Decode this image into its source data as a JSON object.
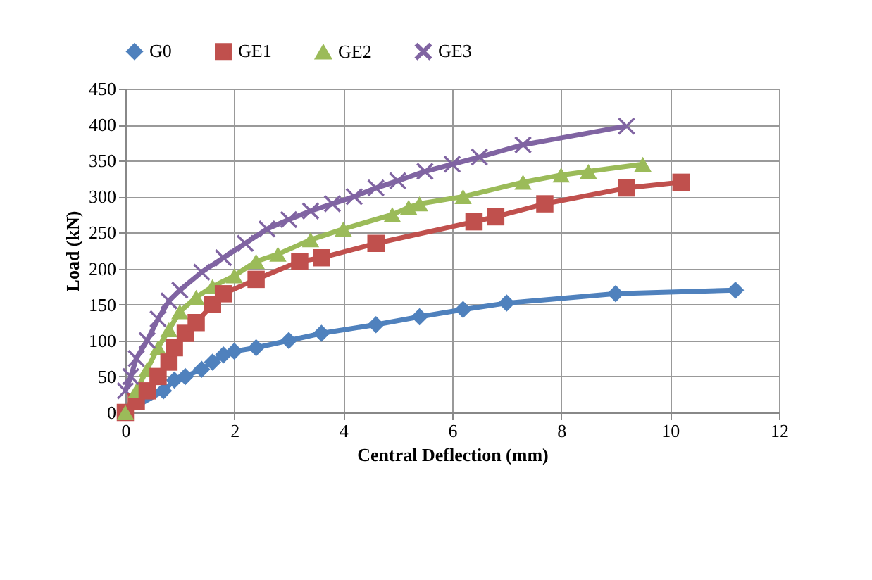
{
  "chart_data": {
    "type": "line",
    "xlabel": "Central Deflection (mm)",
    "ylabel": "Load (kN)",
    "xlim": [
      0,
      12
    ],
    "xticks": [
      0,
      2,
      4,
      6,
      8,
      10,
      12
    ],
    "ylim": [
      0,
      450
    ],
    "yticks": [
      0,
      50,
      100,
      150,
      200,
      250,
      300,
      350,
      400,
      450
    ],
    "grid": true,
    "legend": "top",
    "line_style": "solid",
    "series": [
      {
        "name": "G0",
        "color": "#4f81bd",
        "marker": "diamond",
        "x": [
          0,
          0.7,
          0.9,
          1.1,
          1.4,
          1.6,
          1.8,
          2,
          2.4,
          3,
          3.6,
          4.6,
          5.4,
          6.2,
          7,
          9,
          11.2
        ],
        "values": [
          0,
          30,
          45,
          50,
          60,
          70,
          80,
          85,
          90,
          100,
          110,
          122,
          133,
          143,
          152,
          165,
          170
        ]
      },
      {
        "name": "GE1",
        "color": "#c0504d",
        "marker": "square",
        "x": [
          0,
          0.2,
          0.4,
          0.6,
          0.8,
          0.9,
          1.1,
          1.3,
          1.6,
          1.8,
          2.4,
          3.2,
          3.6,
          4.6,
          6.4,
          6.8,
          7.7,
          9.2,
          10.2
        ],
        "values": [
          0,
          15,
          30,
          50,
          70,
          90,
          110,
          125,
          150,
          165,
          185,
          210,
          215,
          235,
          265,
          272,
          290,
          312,
          320
        ]
      },
      {
        "name": "GE2",
        "color": "#9bbb59",
        "marker": "triangle",
        "x": [
          0,
          0.2,
          0.4,
          0.6,
          0.8,
          1,
          1.3,
          1.6,
          2,
          2.4,
          2.8,
          3.4,
          4,
          4.9,
          5.2,
          5.4,
          6.2,
          7.3,
          8,
          8.5,
          9.5
        ],
        "values": [
          0,
          30,
          60,
          90,
          115,
          140,
          160,
          175,
          190,
          210,
          220,
          240,
          255,
          275,
          285,
          290,
          300,
          320,
          330,
          335,
          345
        ]
      },
      {
        "name": "GE3",
        "color": "#8064a2",
        "marker": "cross",
        "x": [
          0,
          0.1,
          0.2,
          0.4,
          0.6,
          0.8,
          1,
          1.4,
          1.8,
          2.2,
          2.6,
          3,
          3.4,
          3.8,
          4.2,
          4.6,
          5,
          5.5,
          6,
          6.5,
          7.3,
          9.2
        ],
        "values": [
          30,
          50,
          75,
          100,
          130,
          155,
          170,
          195,
          215,
          235,
          255,
          268,
          280,
          290,
          300,
          312,
          322,
          335,
          345,
          355,
          372,
          398
        ]
      }
    ]
  }
}
